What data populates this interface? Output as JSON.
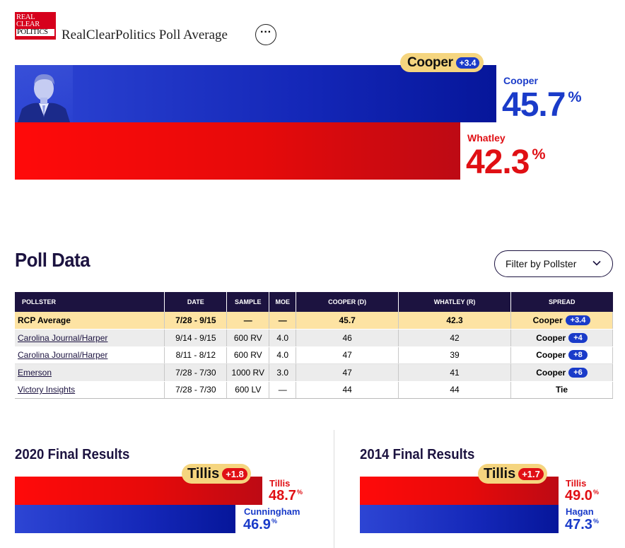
{
  "header": {
    "logo_lines": [
      "REAL",
      "CLEAR",
      "POLITICS"
    ],
    "title": "RealClearPolitics Poll Average",
    "more_label": "···"
  },
  "average": {
    "leader_label": "Cooper",
    "leader_spread": "+3.4",
    "candidates": [
      {
        "name": "Cooper",
        "value": "45.7",
        "pct": "%",
        "party": "D",
        "color": "#1a3bc9"
      },
      {
        "name": "Whatley",
        "value": "42.3",
        "pct": "%",
        "party": "R",
        "color": "#e00f14"
      }
    ]
  },
  "poll_data": {
    "title": "Poll Data",
    "filter_label": "Filter by Pollster",
    "columns": [
      "POLLSTER",
      "DATE",
      "SAMPLE",
      "MOE",
      "COOPER (D)",
      "WHATLEY (R)",
      "SPREAD"
    ],
    "average_row": {
      "pollster": "RCP Average",
      "date": "7/28 - 9/15",
      "sample": "—",
      "moe": "—",
      "cooper": "45.7",
      "whatley": "42.3",
      "spread_name": "Cooper",
      "spread_value": "+3.4"
    },
    "rows": [
      {
        "pollster": "Carolina Journal/Harper",
        "date": "9/14 - 9/15",
        "sample": "600 RV",
        "moe": "4.0",
        "cooper": "46",
        "whatley": "42",
        "spread_name": "Cooper",
        "spread_value": "+4"
      },
      {
        "pollster": "Carolina Journal/Harper",
        "date": "8/11 - 8/12",
        "sample": "600 RV",
        "moe": "4.0",
        "cooper": "47",
        "whatley": "39",
        "spread_name": "Cooper",
        "spread_value": "+8"
      },
      {
        "pollster": "Emerson",
        "date": "7/28 - 7/30",
        "sample": "1000 RV",
        "moe": "3.0",
        "cooper": "47",
        "whatley": "41",
        "spread_name": "Cooper",
        "spread_value": "+6"
      },
      {
        "pollster": "Victory Insights",
        "date": "7/28 - 7/30",
        "sample": "600 LV",
        "moe": "—",
        "cooper": "44",
        "whatley": "44",
        "spread_name": "Tie",
        "spread_value": ""
      }
    ]
  },
  "final_2020": {
    "title": "2020 Final Results",
    "leader_label": "Tillis",
    "leader_spread": "+1.8",
    "candidates": [
      {
        "name": "Tillis",
        "value": "48.7",
        "pct": "%",
        "color": "#e00f14"
      },
      {
        "name": "Cunningham",
        "value": "46.9",
        "pct": "%",
        "color": "#1a3bc9"
      }
    ]
  },
  "final_2014": {
    "title": "2014 Final Results",
    "leader_label": "Tillis",
    "leader_spread": "+1.7",
    "candidates": [
      {
        "name": "Tillis",
        "value": "49.0",
        "pct": "%",
        "color": "#e00f14"
      },
      {
        "name": "Hagan",
        "value": "47.3",
        "pct": "%",
        "color": "#1a3bc9"
      }
    ]
  },
  "colors": {
    "dem": "#1a3bc9",
    "rep": "#e00f14",
    "navy": "#1c1340",
    "gold": "#f5d57f"
  }
}
